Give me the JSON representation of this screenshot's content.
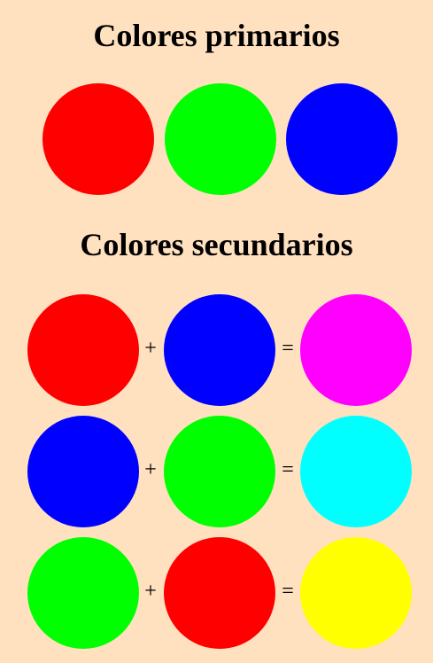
{
  "primary": {
    "title": "Colores primarios",
    "colors": [
      {
        "name": "red",
        "hex": "#ff0000"
      },
      {
        "name": "green",
        "hex": "#00ff00"
      },
      {
        "name": "blue",
        "hex": "#0000ff"
      }
    ]
  },
  "secondary": {
    "title": "Colores secundarios",
    "plus_symbol": "+",
    "equals_symbol": "=",
    "rows": [
      {
        "a": "#ff0000",
        "b": "#0000ff",
        "result": "#ff00ff",
        "result_name": "magenta"
      },
      {
        "a": "#0000ff",
        "b": "#00ff00",
        "result": "#00ffff",
        "result_name": "cyan"
      },
      {
        "a": "#00ff00",
        "b": "#ff0000",
        "result": "#ffff00",
        "result_name": "yellow"
      }
    ]
  }
}
